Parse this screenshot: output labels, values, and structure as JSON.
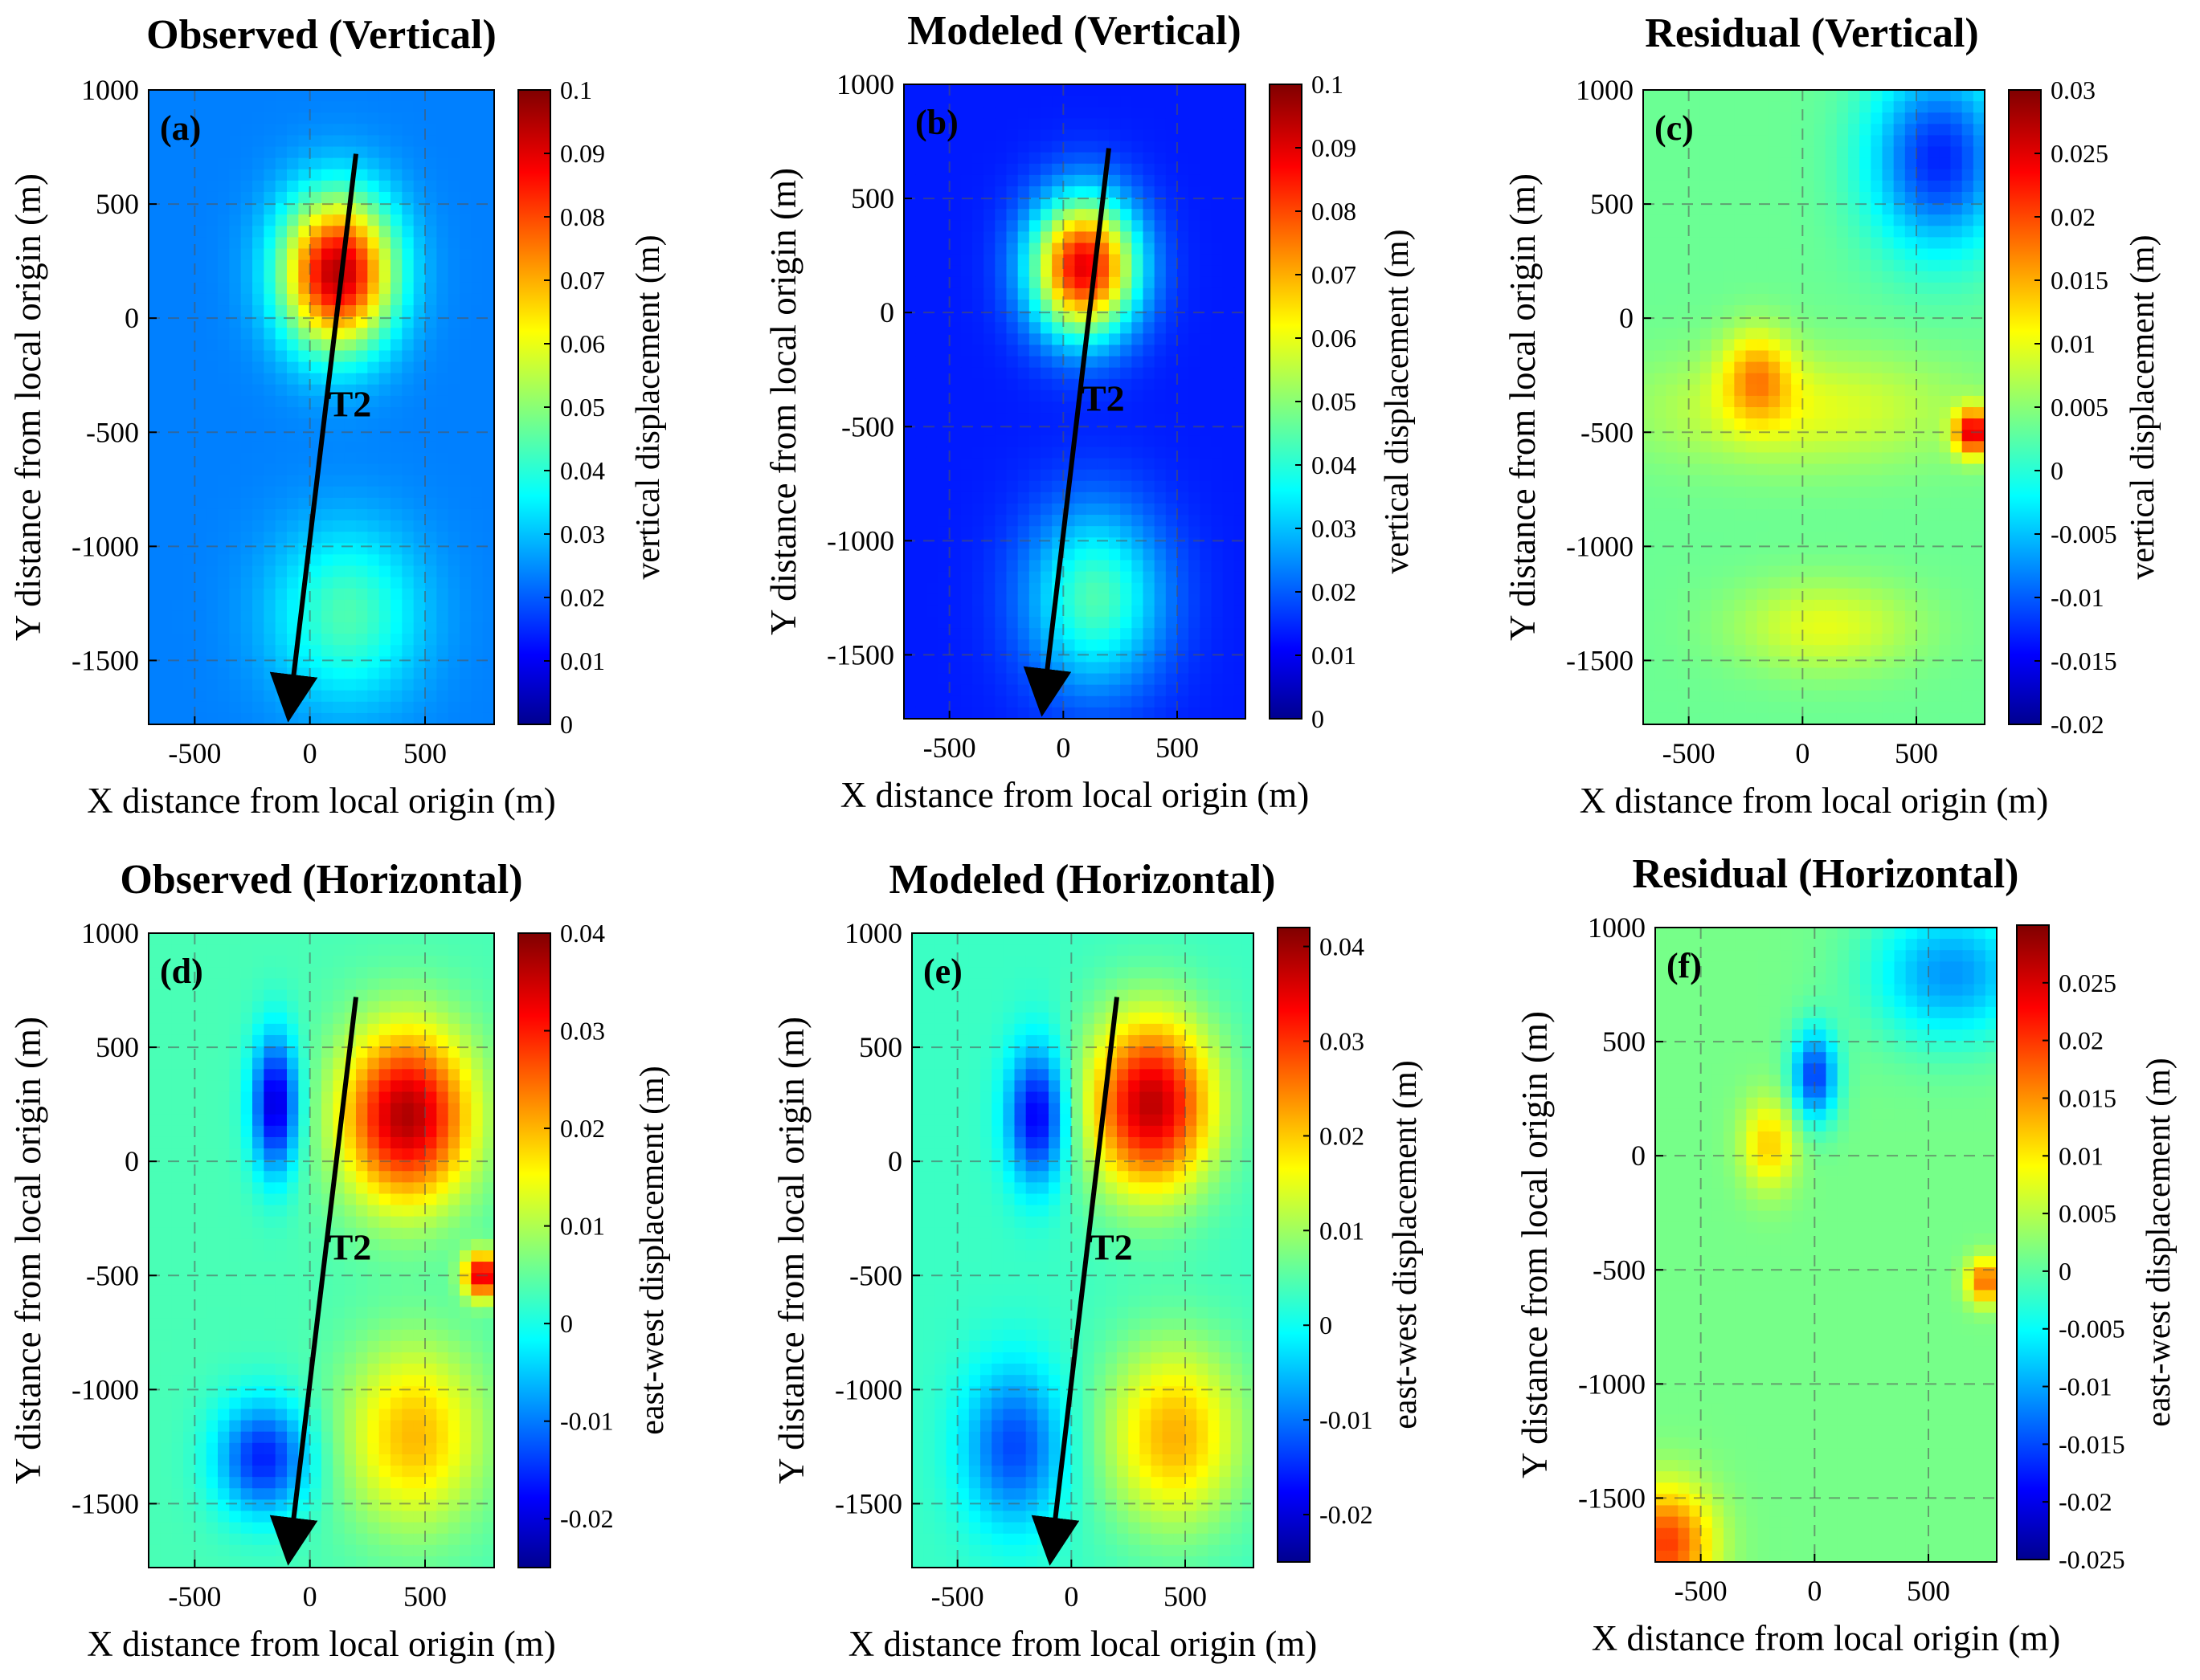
{
  "chart_data": [
    {
      "type": "heatmap",
      "title": "Observed (Vertical)",
      "panel_label": "(a)",
      "xlabel": "X distance from local origin (m)",
      "ylabel": "Y distance from local origin (m)",
      "xlim": [
        -700,
        800
      ],
      "ylim": [
        -1780,
        1000
      ],
      "xticks": [
        "-500",
        "0",
        "500"
      ],
      "yticks": [
        "1000",
        "500",
        "0",
        "-500",
        "-1000",
        "-1500"
      ],
      "colorbar": {
        "label": "vertical displacement (m)",
        "ticks": [
          "0.1",
          "0.09",
          "0.08",
          "0.07",
          "0.06",
          "0.05",
          "0.04",
          "0.03",
          "0.02",
          "0.01",
          "0"
        ],
        "range": [
          0,
          0.1
        ]
      },
      "fault": {
        "label": "T2",
        "start": [
          200,
          720
        ],
        "end": [
          -90,
          -1730
        ]
      },
      "features": [
        {
          "x": 120,
          "y": 200,
          "value": 0.095,
          "rx": 240,
          "ry": 330
        },
        {
          "x": 160,
          "y": -1300,
          "value": 0.045,
          "rx": 320,
          "ry": 380
        }
      ],
      "background": 0.025
    },
    {
      "type": "heatmap",
      "title": "Modeled (Vertical)",
      "panel_label": "(b)",
      "xlabel": "X distance from local origin (m)",
      "ylabel": "Y distance from local origin (m)",
      "xlim": [
        -700,
        800
      ],
      "ylim": [
        -1780,
        1000
      ],
      "xticks": [
        "-500",
        "0",
        "500"
      ],
      "yticks": [
        "1000",
        "500",
        "0",
        "-500",
        "-1000",
        "-1500"
      ],
      "colorbar": {
        "label": "vertical displacement (m)",
        "ticks": [
          "0.1",
          "0.09",
          "0.08",
          "0.07",
          "0.06",
          "0.05",
          "0.04",
          "0.03",
          "0.02",
          "0.01",
          "0"
        ],
        "range": [
          0,
          0.1
        ]
      },
      "fault": {
        "label": "T2",
        "start": [
          200,
          720
        ],
        "end": [
          -90,
          -1730
        ]
      },
      "features": [
        {
          "x": 90,
          "y": 200,
          "value": 0.09,
          "rx": 230,
          "ry": 300
        },
        {
          "x": 140,
          "y": -1250,
          "value": 0.045,
          "rx": 300,
          "ry": 400
        }
      ],
      "background": 0.015
    },
    {
      "type": "heatmap",
      "title": "Residual (Vertical)",
      "panel_label": "(c)",
      "xlabel": "X distance from local origin (m)",
      "ylabel": "Y distance from local origin (m)",
      "xlim": [
        -700,
        800
      ],
      "ylim": [
        -1780,
        1000
      ],
      "xticks": [
        "-500",
        "0",
        "500"
      ],
      "yticks": [
        "1000",
        "500",
        "0",
        "-500",
        "-1000",
        "-1500"
      ],
      "colorbar": {
        "label": "vertical displacement (m)",
        "ticks": [
          "0.03",
          "0.025",
          "0.02",
          "0.015",
          "0.01",
          "0.005",
          "0",
          "-0.005",
          "-0.01",
          "-0.015",
          "-0.02"
        ],
        "range": [
          -0.02,
          0.03
        ]
      },
      "features": [
        {
          "x": -200,
          "y": -250,
          "value": 0.014,
          "rx": 150,
          "ry": 200
        },
        {
          "x": 750,
          "y": -500,
          "value": 0.025,
          "rx": 80,
          "ry": 100
        },
        {
          "x": 600,
          "y": 700,
          "value": -0.012,
          "rx": 300,
          "ry": 400
        },
        {
          "x": 100,
          "y": -1350,
          "value": 0.01,
          "rx": 400,
          "ry": 200
        },
        {
          "x": 0,
          "y": -400,
          "value": 0.01,
          "rx": 700,
          "ry": 250
        }
      ],
      "background": 0.004
    },
    {
      "type": "heatmap",
      "title": "Observed (Horizontal)",
      "panel_label": "(d)",
      "xlabel": "X distance from local origin (m)",
      "ylabel": "Y distance from local origin (m)",
      "xlim": [
        -700,
        800
      ],
      "ylim": [
        -1780,
        1000
      ],
      "xticks": [
        "-500",
        "0",
        "500"
      ],
      "yticks": [
        "1000",
        "500",
        "0",
        "-500",
        "-1000",
        "-1500"
      ],
      "colorbar": {
        "label": "east-west displacement (m)",
        "ticks": [
          "0.04",
          "0.03",
          "0.02",
          "0.01",
          "0",
          "-0.01",
          "-0.02"
        ],
        "range": [
          -0.025,
          0.04
        ]
      },
      "fault": {
        "label": "T2",
        "start": [
          200,
          720
        ],
        "end": [
          -90,
          -1730
        ]
      },
      "features": [
        {
          "x": 420,
          "y": 200,
          "value": 0.037,
          "rx": 280,
          "ry": 380
        },
        {
          "x": -150,
          "y": 250,
          "value": -0.02,
          "rx": 100,
          "ry": 300
        },
        {
          "x": -200,
          "y": -1300,
          "value": -0.015,
          "rx": 200,
          "ry": 250
        },
        {
          "x": 450,
          "y": -1200,
          "value": 0.02,
          "rx": 300,
          "ry": 400
        },
        {
          "x": 750,
          "y": -500,
          "value": 0.035,
          "rx": 80,
          "ry": 100
        }
      ],
      "background": 0.004
    },
    {
      "type": "heatmap",
      "title": "Modeled (Horizontal)",
      "panel_label": "(e)",
      "xlabel": "X distance from local origin (m)",
      "ylabel": "Y distance from local origin (m)",
      "xlim": [
        -700,
        800
      ],
      "ylim": [
        -1780,
        1000
      ],
      "xticks": [
        "-500",
        "0",
        "500"
      ],
      "yticks": [
        "1000",
        "500",
        "0",
        "-500",
        "-1000",
        "-1500"
      ],
      "colorbar": {
        "label": "east-west displacement (m)",
        "ticks": [
          "0.04",
          "0.03",
          "0.02",
          "0.01",
          "0",
          "-0.01",
          "-0.02"
        ],
        "range": [
          -0.025,
          0.042
        ]
      },
      "fault": {
        "label": "T2",
        "start": [
          200,
          720
        ],
        "end": [
          -90,
          -1730
        ]
      },
      "features": [
        {
          "x": 350,
          "y": 250,
          "value": 0.038,
          "rx": 270,
          "ry": 380
        },
        {
          "x": -150,
          "y": 200,
          "value": -0.018,
          "rx": 130,
          "ry": 300
        },
        {
          "x": -250,
          "y": -1250,
          "value": -0.012,
          "rx": 220,
          "ry": 350
        },
        {
          "x": 450,
          "y": -1200,
          "value": 0.022,
          "rx": 300,
          "ry": 400
        }
      ],
      "background": 0.004
    },
    {
      "type": "heatmap",
      "title": "Residual (Horizontal)",
      "panel_label": "(f)",
      "xlabel": "X distance from local origin (m)",
      "ylabel": "Y distance from local origin (m)",
      "xlim": [
        -700,
        800
      ],
      "ylim": [
        -1780,
        1000
      ],
      "xticks": [
        "-500",
        "0",
        "500"
      ],
      "yticks": [
        "1000",
        "500",
        "0",
        "-500",
        "-1000",
        "-1500"
      ],
      "colorbar": {
        "label": "east-west displacement (m)",
        "ticks": [
          "0.025",
          "0.02",
          "0.015",
          "0.01",
          "0.005",
          "0",
          "-0.005",
          "-0.01",
          "-0.015",
          "-0.02",
          "-0.025"
        ],
        "range": [
          -0.025,
          0.03
        ]
      },
      "features": [
        {
          "x": -200,
          "y": 50,
          "value": 0.012,
          "rx": 120,
          "ry": 200
        },
        {
          "x": 0,
          "y": 350,
          "value": -0.015,
          "rx": 100,
          "ry": 200
        },
        {
          "x": 600,
          "y": 800,
          "value": -0.01,
          "rx": 350,
          "ry": 300
        },
        {
          "x": 750,
          "y": -550,
          "value": 0.018,
          "rx": 80,
          "ry": 100
        },
        {
          "x": -650,
          "y": -1700,
          "value": 0.02,
          "rx": 200,
          "ry": 250
        }
      ],
      "background": 0.002
    }
  ]
}
